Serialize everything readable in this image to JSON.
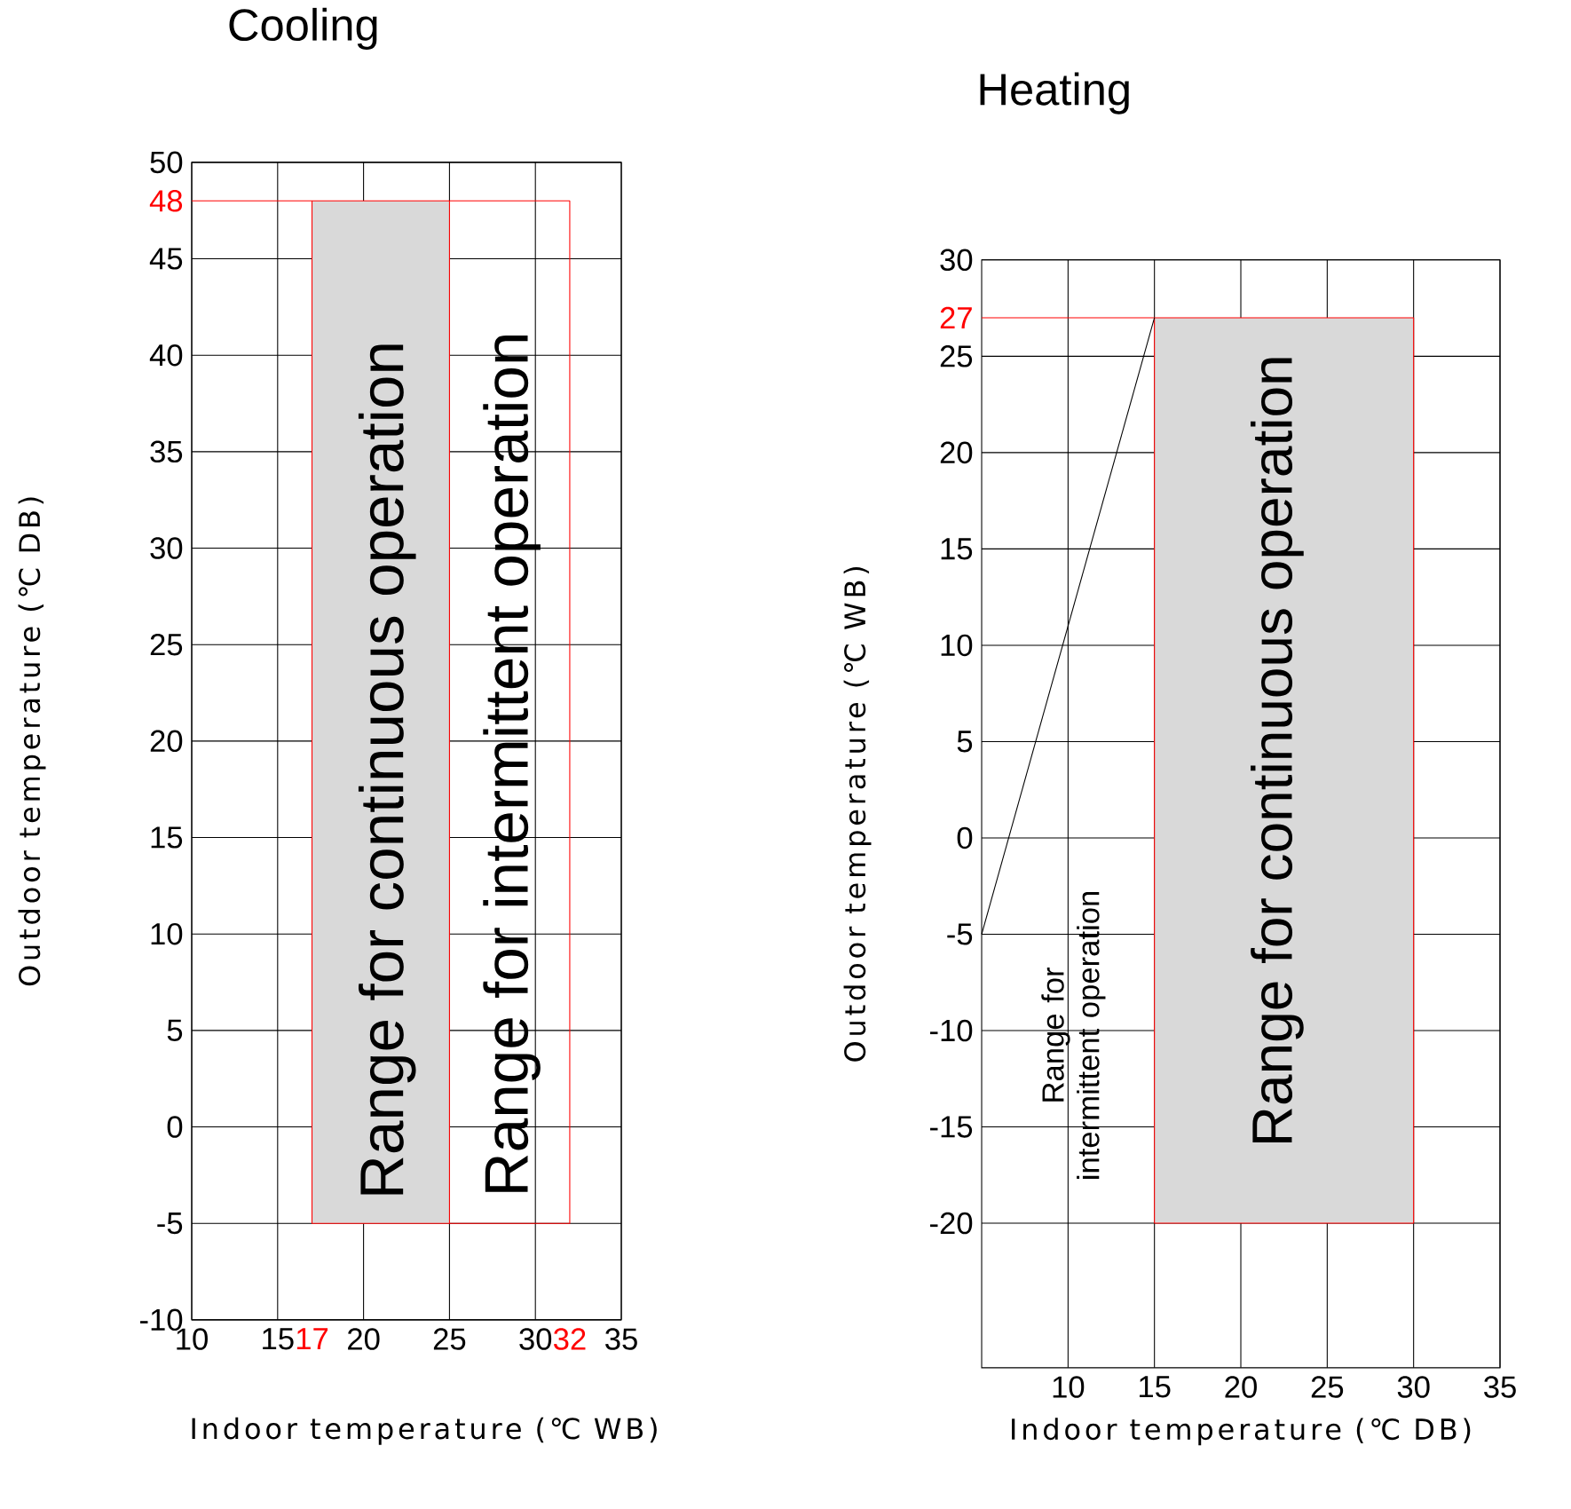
{
  "chart_data": [
    {
      "type": "line",
      "title": "Cooling",
      "xlabel": "Indoor temperature (℃ WB)",
      "ylabel": "Outdoor temperature (℃ DB)",
      "xlim": [
        10,
        35
      ],
      "ylim": [
        -10,
        50
      ],
      "xticks": [
        10,
        15,
        {
          "value": 17,
          "label": "17"
        },
        20,
        25,
        30,
        {
          "value": 32,
          "label": "32"
        },
        35
      ],
      "yticks": [
        -10,
        -5,
        0,
        5,
        10,
        15,
        20,
        25,
        30,
        35,
        40,
        45,
        {
          "value": 48,
          "label": "48"
        },
        50
      ],
      "grid": true,
      "series": [
        {
          "type": "area",
          "color": "#d9d9d9",
          "x": [
            17,
            17,
            25,
            25
          ],
          "values": [
            -5,
            48,
            48,
            -5
          ]
        },
        {
          "color": "#ff0000",
          "x": [
            10,
            32,
            32,
            17,
            17,
            25,
            25
          ],
          "values": [
            48,
            48,
            -5,
            -5,
            48,
            48,
            -5
          ]
        }
      ],
      "annotations": [
        "Range for continuous operation",
        "Range for intermittent operation"
      ]
    },
    {
      "type": "line",
      "title": "Heating",
      "xlabel": "Indoor temperature (℃ DB)",
      "ylabel": "Outdoor temperature (℃ WB)",
      "xlim": [
        5,
        35
      ],
      "ylim": [
        -27.5,
        30
      ],
      "xticks": [
        10,
        15,
        20,
        25,
        30,
        35
      ],
      "yticks": [
        -20,
        -15,
        -10,
        -5,
        0,
        5,
        10,
        15,
        20,
        25,
        {
          "value": 27,
          "label": "27"
        },
        30
      ],
      "grid": true,
      "series": [
        {
          "type": "area",
          "color": "#d9d9d9",
          "x": [
            15,
            15,
            30,
            30
          ],
          "values": [
            -20,
            27,
            27,
            -20
          ]
        },
        {
          "color": "#ff0000",
          "x": [
            5,
            30,
            30,
            15,
            15
          ],
          "values": [
            27,
            27,
            -20,
            -20,
            27
          ]
        },
        {
          "color": "#000000",
          "x": [
            5,
            15
          ],
          "values": [
            -5,
            27
          ]
        }
      ],
      "annotations": [
        "Range for intermittent operation",
        "Range for continuous operation"
      ]
    }
  ]
}
